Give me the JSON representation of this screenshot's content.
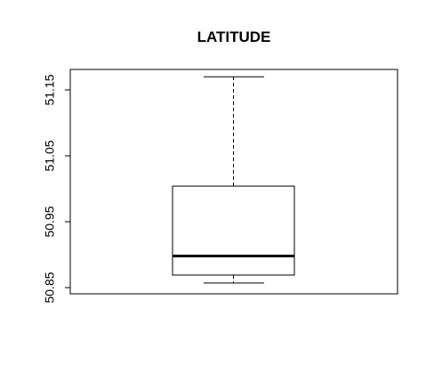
{
  "chart_data": {
    "type": "boxplot",
    "title": "LATITUDE",
    "xlabel": "",
    "ylabel": "",
    "ylim": [
      50.85,
      51.175
    ],
    "yticks": [
      50.85,
      50.95,
      51.05,
      51.15
    ],
    "ytick_labels": [
      "50.85",
      "50.95",
      "51.05",
      "51.15"
    ],
    "series": [
      {
        "min": 50.857,
        "q1": 50.869,
        "median": 50.898,
        "q3": 51.004,
        "max": 51.17
      }
    ],
    "grid": false,
    "legend": "none",
    "colors": {
      "axis": "#000000",
      "box": "#000000",
      "background": "#ffffff"
    }
  }
}
